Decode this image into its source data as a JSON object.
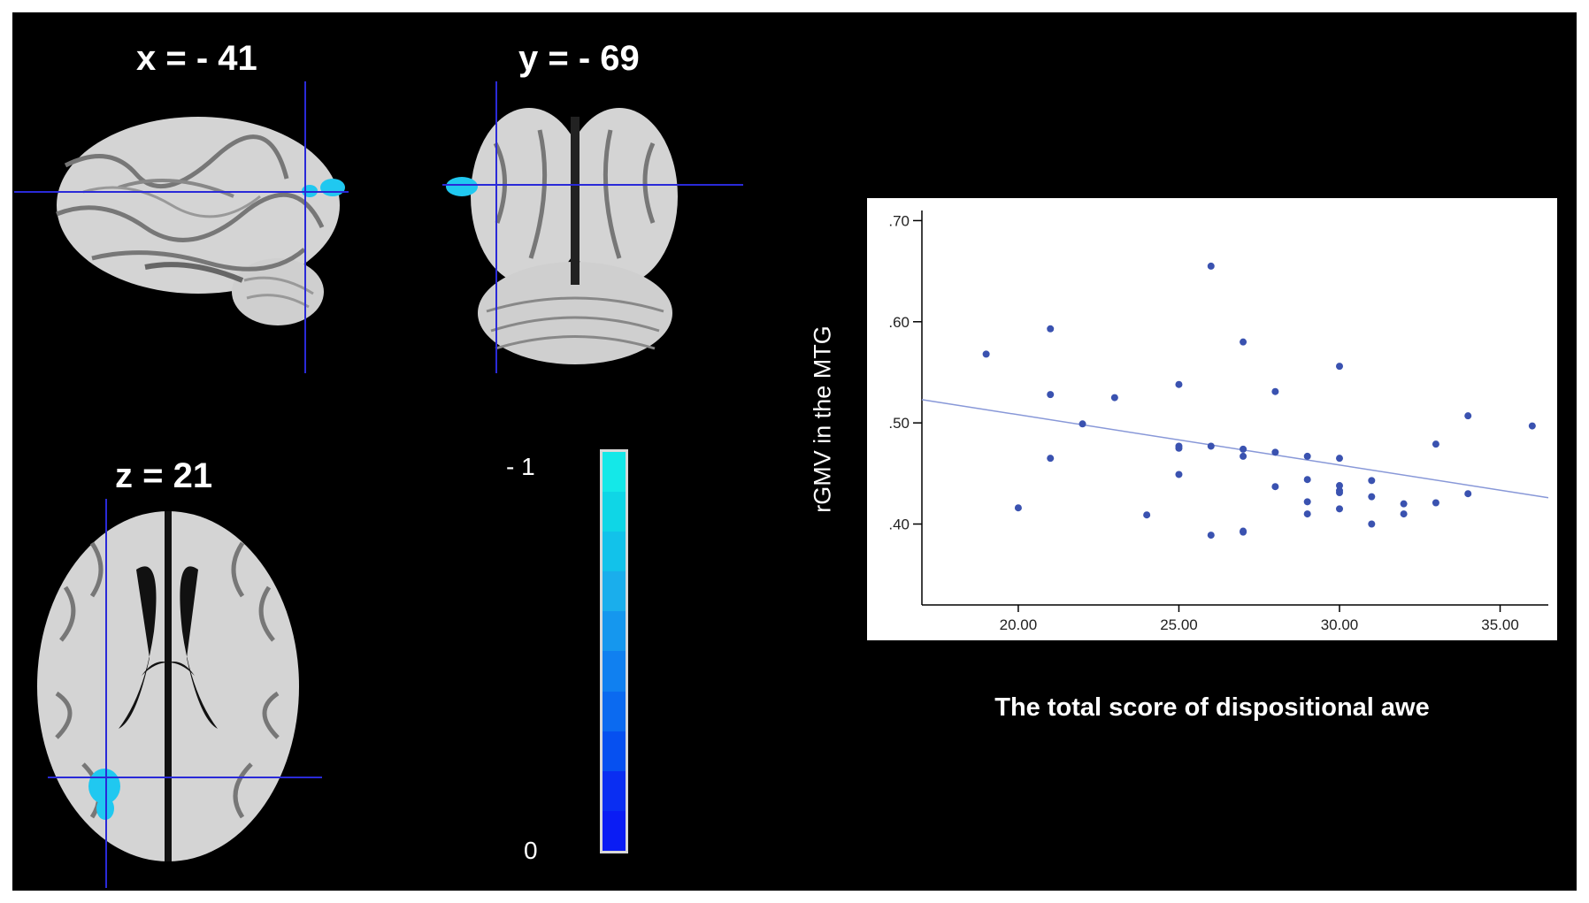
{
  "slices": {
    "sagittal": {
      "title": "x = - 41"
    },
    "coronal": {
      "title": "y = - 69"
    },
    "axial": {
      "title": "z = 21"
    }
  },
  "colorbar": {
    "max_label": "- 1",
    "min_label": "0",
    "colors": [
      "#14e8e8",
      "#0fd6e6",
      "#12c2ea",
      "#1aaeec",
      "#1597ee",
      "#1080f0",
      "#0b6af0",
      "#0650f0",
      "#0a2ef2",
      "#0a1cf4"
    ]
  },
  "colors": {
    "cluster": "#20c8f0",
    "crosshair": "#2a2ad8",
    "points": "#3a52b0",
    "fit_line": "#8898d8"
  },
  "chart_data": {
    "type": "scatter",
    "xlabel": "The total score of  dispositional awe",
    "ylabel": "rGMV  in the  MTG",
    "xlim": [
      17,
      36.5
    ],
    "ylim": [
      0.32,
      0.71
    ],
    "xticks": [
      "20.00",
      "25.00",
      "30.00",
      "35.00"
    ],
    "xtick_values": [
      20,
      25,
      30,
      35
    ],
    "yticks": [
      ".40",
      ".50",
      ".60",
      ".70"
    ],
    "ytick_values": [
      0.4,
      0.5,
      0.6,
      0.7
    ],
    "grid": false,
    "fit_line": {
      "x": [
        17,
        36.5
      ],
      "y": [
        0.523,
        0.426
      ]
    },
    "x": [
      19,
      20,
      21,
      21,
      21,
      22,
      23,
      24,
      25,
      25,
      25,
      25,
      26,
      26,
      26,
      27,
      27,
      27,
      27,
      27,
      28,
      28,
      28,
      29,
      29,
      29,
      29,
      30,
      30,
      30,
      30,
      30,
      30,
      31,
      31,
      31,
      32,
      32,
      33,
      33,
      34,
      34,
      36
    ],
    "y": [
      0.568,
      0.416,
      0.593,
      0.528,
      0.465,
      0.499,
      0.525,
      0.409,
      0.538,
      0.477,
      0.475,
      0.449,
      0.655,
      0.477,
      0.389,
      0.58,
      0.474,
      0.467,
      0.393,
      0.392,
      0.531,
      0.471,
      0.437,
      0.467,
      0.444,
      0.422,
      0.41,
      0.556,
      0.465,
      0.438,
      0.433,
      0.431,
      0.415,
      0.443,
      0.427,
      0.4,
      0.42,
      0.41,
      0.479,
      0.421,
      0.507,
      0.43,
      0.497
    ]
  }
}
